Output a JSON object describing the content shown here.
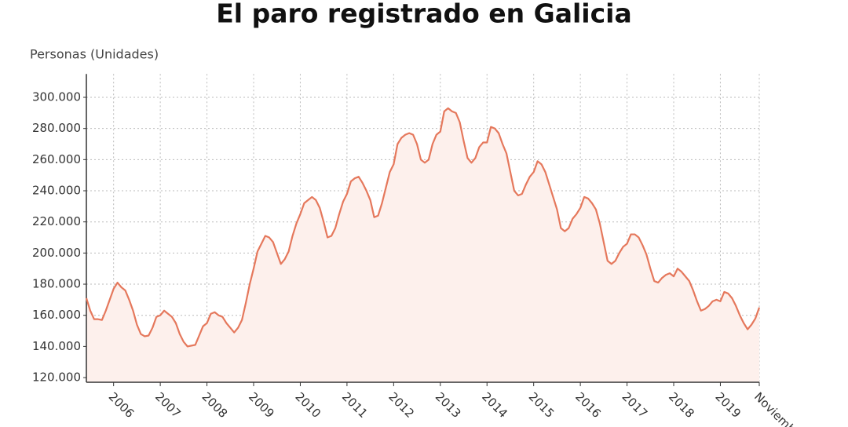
{
  "chart_data": {
    "type": "area",
    "title": "El paro registrado en Galicia",
    "y_label": "Personas (Unidades)",
    "color": "#e5785c",
    "fill": "#fdf0ec",
    "grid": true,
    "categories": [
      null,
      null,
      null,
      null,
      null,
      null,
      null,
      "2006",
      null,
      null,
      null,
      null,
      null,
      null,
      null,
      null,
      null,
      null,
      null,
      "2007",
      null,
      null,
      null,
      null,
      null,
      null,
      null,
      null,
      null,
      null,
      null,
      "2008",
      null,
      null,
      null,
      null,
      null,
      null,
      null,
      null,
      null,
      null,
      null,
      "2009",
      null,
      null,
      null,
      null,
      null,
      null,
      null,
      null,
      null,
      null,
      null,
      "2010",
      null,
      null,
      null,
      null,
      null,
      null,
      null,
      null,
      null,
      null,
      null,
      "2011",
      null,
      null,
      null,
      null,
      null,
      null,
      null,
      null,
      null,
      null,
      null,
      "2012",
      null,
      null,
      null,
      null,
      null,
      null,
      null,
      null,
      null,
      null,
      null,
      "2013",
      null,
      null,
      null,
      null,
      null,
      null,
      null,
      null,
      null,
      null,
      null,
      "2014",
      null,
      null,
      null,
      null,
      null,
      null,
      null,
      null,
      null,
      null,
      null,
      "2015",
      null,
      null,
      null,
      null,
      null,
      null,
      null,
      null,
      null,
      null,
      null,
      "2016",
      null,
      null,
      null,
      null,
      null,
      null,
      null,
      null,
      null,
      null,
      null,
      "2017",
      null,
      null,
      null,
      null,
      null,
      null,
      null,
      null,
      null,
      null,
      null,
      "2018",
      null,
      null,
      null,
      null,
      null,
      null,
      null,
      null,
      null,
      null,
      null,
      "2019",
      null,
      null,
      null,
      null,
      null,
      null,
      null,
      null,
      null,
      "Noviembre"
    ],
    "values": [
      171000,
      163000,
      157500,
      157500,
      157000,
      163000,
      170000,
      177000,
      181000,
      178000,
      176000,
      170000,
      163000,
      154000,
      148000,
      146500,
      147000,
      152000,
      159000,
      160000,
      163000,
      161000,
      159000,
      155000,
      148000,
      143000,
      140000,
      140500,
      141000,
      147000,
      153000,
      155000,
      161000,
      162000,
      160000,
      159000,
      155000,
      152000,
      149000,
      152000,
      157000,
      168000,
      180000,
      190000,
      201000,
      206000,
      211000,
      210000,
      207000,
      200000,
      193000,
      196000,
      201000,
      211000,
      219000,
      225000,
      232000,
      234000,
      236000,
      234000,
      229000,
      220000,
      210000,
      211000,
      216000,
      225000,
      233000,
      238000,
      246000,
      248000,
      249000,
      245000,
      240000,
      234000,
      223000,
      224000,
      232000,
      242000,
      252000,
      257000,
      270000,
      274000,
      276000,
      277000,
      276000,
      270000,
      260000,
      258000,
      260000,
      270000,
      276000,
      278000,
      291000,
      293000,
      291000,
      290000,
      284000,
      272000,
      261000,
      258000,
      261000,
      268000,
      271000,
      271000,
      281000,
      280000,
      277000,
      270000,
      264000,
      252000,
      240000,
      237000,
      238000,
      244000,
      249000,
      252000,
      259000,
      257000,
      252000,
      244000,
      236000,
      228000,
      216000,
      214000,
      216000,
      222000,
      225000,
      229000,
      236000,
      235000,
      232000,
      228000,
      219000,
      207000,
      195000,
      193000,
      195000,
      200000,
      204000,
      206000,
      212000,
      212000,
      210000,
      205000,
      199000,
      190000,
      182000,
      181000,
      184000,
      186000,
      187000,
      185000,
      190000,
      188000,
      185000,
      182000,
      176000,
      169000,
      163000,
      164000,
      166000,
      169000,
      170000,
      169000,
      175000,
      174000,
      171000,
      166000,
      160000,
      155000,
      151000,
      154000,
      158000,
      165000
    ],
    "ylim": [
      117000,
      315000
    ],
    "yticks": [
      {
        "value": 120000,
        "label": "120.000"
      },
      {
        "value": 140000,
        "label": "140.000"
      },
      {
        "value": 160000,
        "label": "160.000"
      },
      {
        "value": 180000,
        "label": "180.000"
      },
      {
        "value": 200000,
        "label": "200.000"
      },
      {
        "value": 220000,
        "label": "220.000"
      },
      {
        "value": 240000,
        "label": "240.000"
      },
      {
        "value": 260000,
        "label": "260.000"
      },
      {
        "value": 280000,
        "label": "280.000"
      },
      {
        "value": 300000,
        "label": "300.000"
      }
    ]
  }
}
